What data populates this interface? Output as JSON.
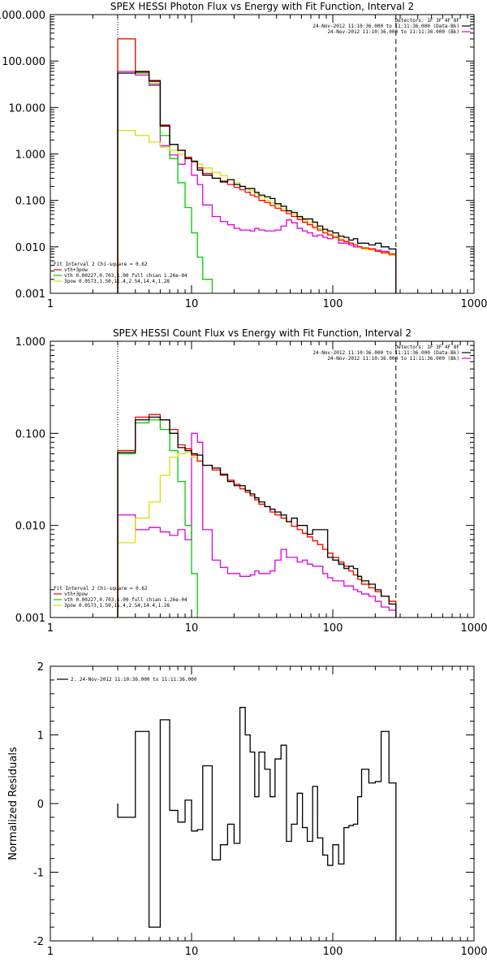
{
  "chart_data": [
    {
      "type": "line",
      "title": "SPEX HESSI Photon Flux vs Energy with Fit Function, Interval 2",
      "xscale": "log",
      "yscale": "log",
      "xlim": [
        1,
        1000
      ],
      "ylim": [
        0.001,
        1000
      ],
      "xticks": [
        "1",
        "10",
        "100",
        "1000"
      ],
      "yticks": [
        "0.001",
        "0.010",
        "0.100",
        "1.000",
        "10.000",
        "100.000",
        "1000.000"
      ],
      "legend_top": [
        "Detectors: 1F 3F 4F 8F",
        "24-Nov-2012 11:10:36.000 to 11:11:36.000 (Data-Bk)",
        "24-Nov-2012 11:10:36.000 to 11:11:36.000 (Bk)"
      ],
      "legend_bottom_title": "Fit Interval 2   Chi-square = 0.62",
      "legend_bottom": [
        "vth+3pow",
        "vth 0.00227,0.703,1.00  full chian 1.26e-04",
        "3pow 0.0573,1.50,11.4,2.54,14.4,1.28"
      ],
      "vlines": [
        3,
        280
      ],
      "edges": [
        3,
        4,
        5,
        6,
        7,
        8,
        9,
        10,
        11,
        12,
        14,
        16,
        18,
        20,
        22,
        24,
        26,
        28,
        30,
        33,
        36,
        39,
        43,
        47,
        51,
        56,
        61,
        66,
        72,
        78,
        85,
        92,
        100,
        110,
        120,
        130,
        140,
        150,
        160,
        180,
        200,
        220,
        250,
        280
      ],
      "series": [
        {
          "name": "Data-Bk",
          "color": "#000000",
          "values": [
            55,
            60,
            38,
            4,
            1.6,
            1.2,
            0.8,
            0.7,
            0.45,
            0.35,
            0.3,
            0.25,
            0.28,
            0.22,
            0.2,
            0.18,
            0.18,
            0.15,
            0.13,
            0.12,
            0.11,
            0.085,
            0.075,
            0.06,
            0.055,
            0.045,
            0.04,
            0.04,
            0.034,
            0.028,
            0.024,
            0.022,
            0.02,
            0.017,
            0.016,
            0.014,
            0.015,
            0.012,
            0.012,
            0.011,
            0.012,
            0.01,
            0.009
          ]
        },
        {
          "name": "Bk",
          "color": "#dd00dd",
          "values": [
            60,
            50,
            30,
            1.5,
            0.95,
            0.6,
            0.8,
            0.35,
            0.22,
            0.08,
            0.045,
            0.035,
            0.03,
            0.025,
            0.023,
            0.023,
            0.022,
            0.025,
            0.023,
            0.022,
            0.022,
            0.023,
            0.028,
            0.038,
            0.033,
            0.025,
            0.022,
            0.02,
            0.017,
            0.018,
            0.016,
            0.015,
            0.016,
            0.012,
            0.012,
            0.011,
            0.01,
            0.01,
            0.009,
            0.009,
            0.0085,
            0.008,
            0.007
          ]
        },
        {
          "name": "vth+3pow",
          "color": "#ff0000",
          "values": [
            300,
            58,
            36,
            4.2,
            1.6,
            1.2,
            0.85,
            0.68,
            0.5,
            0.38,
            0.3,
            0.26,
            0.22,
            0.19,
            0.17,
            0.15,
            0.13,
            0.12,
            0.1,
            0.09,
            0.078,
            0.068,
            0.06,
            0.052,
            0.045,
            0.039,
            0.034,
            0.03,
            0.026,
            0.023,
            0.02,
            0.018,
            0.016,
            0.014,
            0.013,
            0.012,
            0.011,
            0.01,
            0.0095,
            0.009,
            0.008,
            0.0075,
            0.007
          ]
        },
        {
          "name": "vth",
          "color": "#00cc00",
          "values": [
            300,
            55,
            32,
            2.5,
            0.8,
            0.24,
            0.07,
            0.02,
            0.006,
            0.002,
            0.0008
          ]
        },
        {
          "name": "3pow",
          "color": "#dddd00",
          "values": [
            3.2,
            2.5,
            1.8,
            1.4,
            1.2,
            1.0,
            0.85,
            0.7,
            0.6,
            0.5,
            0.4,
            0.34,
            0.28,
            0.24,
            0.2,
            0.18,
            0.16,
            0.14,
            0.12,
            0.1,
            0.088,
            0.077,
            0.066,
            0.058,
            0.05,
            0.043,
            0.038,
            0.033,
            0.028,
            0.025,
            0.022,
            0.019,
            0.017,
            0.015,
            0.013,
            0.012,
            0.011,
            0.01,
            0.009,
            0.0085,
            0.008,
            0.0072,
            0.0065
          ]
        }
      ]
    },
    {
      "type": "line",
      "title": "SPEX HESSI Count Flux vs Energy with Fit Function, Interval 2",
      "xscale": "log",
      "yscale": "log",
      "xlim": [
        1,
        1000
      ],
      "ylim": [
        0.001,
        1.0
      ],
      "xticks": [
        "1",
        "10",
        "100",
        "1000"
      ],
      "yticks": [
        "0.001",
        "0.010",
        "0.100",
        "1.000"
      ],
      "legend_top": [
        "Detectors: 1F 3F 4F 8F",
        "24-Nov-2012 11:10:36.000 to 11:11:36.000 (Data-Bk)",
        "24-Nov-2012 11:10:36.000 to 11:11:36.000 (Bk)"
      ],
      "legend_bottom_title": "Fit Interval 2   Chi-square = 0.62",
      "legend_bottom": [
        "vth+3pow",
        "vth 0.00227,0.703,1.00  full chian 1.26e-04",
        "3pow 0.0573,1.50,11.4,2.54,14.4,1.28"
      ],
      "vlines": [
        3,
        280
      ],
      "edges": [
        3,
        4,
        5,
        6,
        7,
        8,
        9,
        10,
        11,
        12,
        14,
        16,
        18,
        20,
        22,
        24,
        26,
        28,
        30,
        33,
        36,
        39,
        43,
        47,
        51,
        56,
        61,
        66,
        72,
        78,
        85,
        92,
        100,
        110,
        120,
        130,
        140,
        150,
        160,
        180,
        200,
        220,
        250,
        280
      ],
      "series": [
        {
          "name": "Data-Bk",
          "color": "#000000",
          "values": [
            0.062,
            0.14,
            0.15,
            0.14,
            0.1,
            0.07,
            0.065,
            0.06,
            0.058,
            0.045,
            0.042,
            0.036,
            0.03,
            0.027,
            0.027,
            0.024,
            0.022,
            0.02,
            0.018,
            0.016,
            0.015,
            0.014,
            0.013,
            0.011,
            0.012,
            0.01,
            0.01,
            0.008,
            0.009,
            0.009,
            0.009,
            0.0045,
            0.0042,
            0.0038,
            0.0034,
            0.0036,
            0.0034,
            0.0028,
            0.0025,
            0.0023,
            0.002,
            0.0017,
            0.0014
          ]
        },
        {
          "name": "Bk",
          "color": "#dd00dd",
          "values": [
            0.013,
            0.009,
            0.0095,
            0.0085,
            0.0078,
            0.009,
            0.007,
            0.1,
            0.08,
            0.009,
            0.0042,
            0.0035,
            0.003,
            0.003,
            0.0028,
            0.0028,
            0.0029,
            0.0032,
            0.003,
            0.003,
            0.0032,
            0.0042,
            0.0055,
            0.0045,
            0.0045,
            0.004,
            0.0042,
            0.0038,
            0.0036,
            0.0036,
            0.003,
            0.0027,
            0.0025,
            0.0025,
            0.0022,
            0.0022,
            0.002,
            0.0019,
            0.0018,
            0.0017,
            0.0015,
            0.0013,
            0.0012
          ]
        },
        {
          "name": "vth+3pow",
          "color": "#ff0000",
          "values": [
            0.065,
            0.15,
            0.16,
            0.14,
            0.11,
            0.075,
            0.068,
            0.058,
            0.05,
            0.045,
            0.04,
            0.035,
            0.031,
            0.028,
            0.025,
            0.023,
            0.021,
            0.019,
            0.017,
            0.016,
            0.014,
            0.013,
            0.012,
            0.011,
            0.0098,
            0.009,
            0.0082,
            0.0075,
            0.0068,
            0.0062,
            0.0055,
            0.005,
            0.0045,
            0.004,
            0.0036,
            0.0032,
            0.0029,
            0.0026,
            0.0023,
            0.0021,
            0.0019,
            0.0017,
            0.0015
          ]
        },
        {
          "name": "vth",
          "color": "#00cc00",
          "values": [
            0.06,
            0.13,
            0.14,
            0.11,
            0.065,
            0.03,
            0.01,
            0.003,
            0.0009
          ]
        },
        {
          "name": "3pow",
          "color": "#dddd00",
          "values": [
            0.0065,
            0.012,
            0.018,
            0.035,
            0.055,
            0.06,
            0.062,
            0.055,
            0.05,
            0.045,
            0.04,
            0.035,
            0.031,
            0.028,
            0.025,
            0.023,
            0.021,
            0.019,
            0.017,
            0.016,
            0.014,
            0.013,
            0.012,
            0.011,
            0.0098,
            0.009,
            0.0082,
            0.0075,
            0.0068,
            0.0062,
            0.0055,
            0.005,
            0.0045,
            0.004,
            0.0036,
            0.0032,
            0.0029,
            0.0026,
            0.0023,
            0.0021,
            0.0019,
            0.0017,
            0.0015
          ]
        }
      ]
    },
    {
      "type": "line",
      "title": "",
      "ylabel": "Normalized Residuals",
      "xscale": "log",
      "xlim": [
        1,
        1000
      ],
      "ylim": [
        -2,
        2
      ],
      "xticks": [
        "1",
        "10",
        "100",
        "1000"
      ],
      "yticks": [
        "-2",
        "-1",
        "0",
        "1",
        "2"
      ],
      "legend_top": [
        "2. 24-Nov-2012 11:10:36.000 to 11:11:36.000"
      ],
      "edges": [
        3,
        4,
        5,
        6,
        7,
        8,
        9,
        10,
        11,
        12,
        14,
        16,
        18,
        20,
        22,
        24,
        26,
        28,
        30,
        33,
        36,
        39,
        43,
        47,
        51,
        56,
        61,
        66,
        72,
        78,
        85,
        92,
        100,
        110,
        120,
        130,
        140,
        150,
        160,
        180,
        200,
        220,
        250,
        280
      ],
      "series": [
        {
          "name": "2. 24-Nov-2012 11:10:36.000 to 11:11:36.000",
          "color": "#000000",
          "values": [
            -0.2,
            1.05,
            -1.8,
            1.22,
            -0.1,
            -0.27,
            0.05,
            -0.4,
            -0.38,
            0.55,
            -0.82,
            -0.6,
            -0.3,
            -0.58,
            1.4,
            1.0,
            0.75,
            0.1,
            0.75,
            0.5,
            0.1,
            0.65,
            0.85,
            -0.55,
            -0.3,
            0.15,
            -0.35,
            -0.55,
            0.25,
            -0.5,
            -0.75,
            -0.9,
            -0.6,
            -0.88,
            -0.35,
            -0.32,
            -0.3,
            0.1,
            0.5,
            0.3,
            0.32,
            1.05,
            0.3
          ]
        }
      ]
    }
  ]
}
